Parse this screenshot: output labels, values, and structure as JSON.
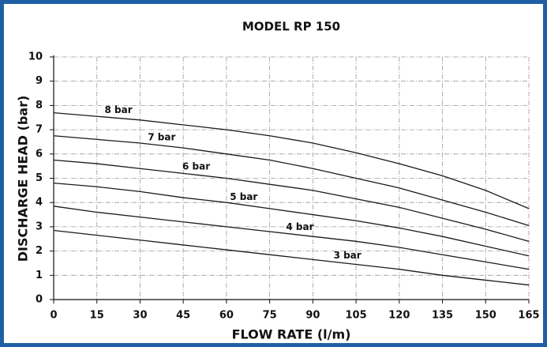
{
  "chart_data": {
    "type": "line",
    "title": "MODEL RP 150",
    "x_label": "FLOW RATE (l/m)",
    "y_label": "DISCHARGE HEAD (bar)",
    "x": [
      0,
      15,
      30,
      45,
      60,
      75,
      90,
      105,
      120,
      135,
      150,
      165
    ],
    "series": [
      {
        "name": "8 bar",
        "color": "#1a1a1a",
        "values": [
          7.7,
          7.55,
          7.4,
          7.2,
          7.0,
          6.75,
          6.45,
          6.05,
          5.6,
          5.1,
          4.5,
          3.75
        ]
      },
      {
        "name": "7 bar",
        "color": "#1a1a1a",
        "values": [
          6.75,
          6.6,
          6.45,
          6.25,
          6.0,
          5.75,
          5.4,
          5.0,
          4.6,
          4.1,
          3.6,
          3.05
        ]
      },
      {
        "name": "6 bar",
        "color": "#1a1a1a",
        "values": [
          5.75,
          5.6,
          5.4,
          5.2,
          5.0,
          4.75,
          4.5,
          4.15,
          3.8,
          3.35,
          2.9,
          2.4
        ]
      },
      {
        "name": "5 bar",
        "color": "#1a1a1a",
        "values": [
          4.8,
          4.65,
          4.45,
          4.2,
          4.0,
          3.75,
          3.5,
          3.25,
          2.95,
          2.6,
          2.2,
          1.8
        ]
      },
      {
        "name": "4 bar",
        "color": "#1a1a1a",
        "values": [
          3.85,
          3.6,
          3.4,
          3.2,
          3.0,
          2.8,
          2.6,
          2.4,
          2.15,
          1.85,
          1.55,
          1.25
        ]
      },
      {
        "name": "3 bar",
        "color": "#1a1a1a",
        "values": [
          2.85,
          2.65,
          2.45,
          2.25,
          2.05,
          1.85,
          1.65,
          1.45,
          1.25,
          1.0,
          0.8,
          0.6
        ]
      }
    ],
    "xlim": [
      0,
      165
    ],
    "xticks": [
      0,
      15,
      30,
      45,
      60,
      75,
      90,
      105,
      120,
      135,
      150,
      165
    ],
    "ylim": [
      0,
      10
    ],
    "yticks": [
      0,
      1,
      2,
      3,
      4,
      5,
      6,
      7,
      8,
      9,
      10
    ],
    "grid": true
  }
}
